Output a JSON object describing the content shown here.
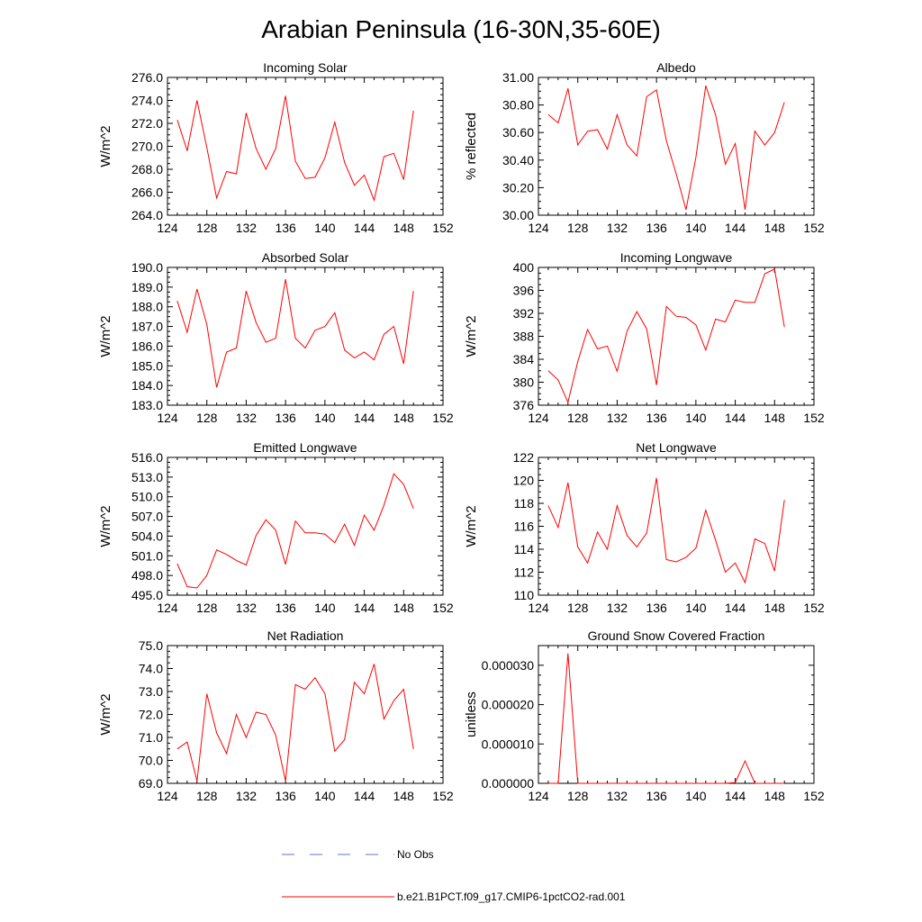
{
  "figure": {
    "title": "Arabian Peninsula (16-30N,35-60E)",
    "line_color": "#ff0000",
    "obs_color": "#6b6bd6",
    "legend": [
      {
        "label": "No Obs",
        "style": "dashed",
        "color": "#6b6bd6"
      },
      {
        "label": "b.e21.B1PCT.f09_g17.CMIP6-1pctCO2-rad.001",
        "style": "solid",
        "color": "#ff0000"
      }
    ]
  },
  "chart_data": [
    {
      "type": "line",
      "title": "Incoming Solar",
      "ylabel": "W/m^2",
      "xlim": [
        124,
        152
      ],
      "ylim": [
        264,
        276
      ],
      "xticks": [
        "124",
        "128",
        "132",
        "136",
        "140",
        "144",
        "148",
        "152"
      ],
      "yticks": [
        "264.0",
        "266.0",
        "268.0",
        "270.0",
        "272.0",
        "274.0",
        "276.0"
      ],
      "x": [
        125,
        126,
        127,
        128,
        129,
        130,
        131,
        132,
        133,
        134,
        135,
        136,
        137,
        138,
        139,
        140,
        141,
        142,
        143,
        144,
        145,
        146,
        147,
        148,
        149
      ],
      "series": [
        {
          "values": [
            272.3,
            269.6,
            274.0,
            269.9,
            265.5,
            267.8,
            267.6,
            272.9,
            269.8,
            268.0,
            269.8,
            274.4,
            268.7,
            267.2,
            267.3,
            269.0,
            272.1,
            268.6,
            266.6,
            267.5,
            265.3,
            269.1,
            269.4,
            267.1,
            273.1
          ]
        }
      ]
    },
    {
      "type": "line",
      "title": "Albedo",
      "ylabel": "% reflected",
      "xlim": [
        124,
        152
      ],
      "ylim": [
        30.0,
        31.0
      ],
      "xticks": [
        "124",
        "128",
        "132",
        "136",
        "140",
        "144",
        "148",
        "152"
      ],
      "yticks": [
        "30.00",
        "30.20",
        "30.40",
        "30.60",
        "30.80",
        "31.00"
      ],
      "x": [
        125,
        126,
        127,
        128,
        129,
        130,
        131,
        132,
        133,
        134,
        135,
        136,
        137,
        138,
        139,
        140,
        141,
        142,
        143,
        144,
        145,
        146,
        147,
        148,
        149
      ],
      "series": [
        {
          "values": [
            30.73,
            30.67,
            30.92,
            30.51,
            30.61,
            30.62,
            30.48,
            30.73,
            30.51,
            30.43,
            30.86,
            30.91,
            30.54,
            30.3,
            30.04,
            30.42,
            30.94,
            30.73,
            30.37,
            30.52,
            30.04,
            30.61,
            30.51,
            30.6,
            30.82
          ]
        }
      ]
    },
    {
      "type": "line",
      "title": "Absorbed Solar",
      "ylabel": "W/m^2",
      "xlim": [
        124,
        152
      ],
      "ylim": [
        183,
        190
      ],
      "xticks": [
        "124",
        "128",
        "132",
        "136",
        "140",
        "144",
        "148",
        "152"
      ],
      "yticks": [
        "183.0",
        "184.0",
        "185.0",
        "186.0",
        "187.0",
        "188.0",
        "189.0",
        "190.0"
      ],
      "x": [
        125,
        126,
        127,
        128,
        129,
        130,
        131,
        132,
        133,
        134,
        135,
        136,
        137,
        138,
        139,
        140,
        141,
        142,
        143,
        144,
        145,
        146,
        147,
        148,
        149
      ],
      "series": [
        {
          "values": [
            188.3,
            186.7,
            188.9,
            187.1,
            183.9,
            185.7,
            185.9,
            188.8,
            187.2,
            186.2,
            186.4,
            189.4,
            186.4,
            185.9,
            186.8,
            187.0,
            187.7,
            185.8,
            185.4,
            185.7,
            185.3,
            186.6,
            187.0,
            185.1,
            188.8
          ]
        }
      ]
    },
    {
      "type": "line",
      "title": "Incoming Longwave",
      "ylabel": "W/m^2",
      "xlim": [
        124,
        152
      ],
      "ylim": [
        376,
        400
      ],
      "xticks": [
        "124",
        "128",
        "132",
        "136",
        "140",
        "144",
        "148",
        "152"
      ],
      "yticks": [
        "376",
        "380",
        "384",
        "388",
        "392",
        "396",
        "400"
      ],
      "x": [
        125,
        126,
        127,
        128,
        129,
        130,
        131,
        132,
        133,
        134,
        135,
        136,
        137,
        138,
        139,
        140,
        141,
        142,
        143,
        144,
        145,
        146,
        147,
        148,
        149
      ],
      "series": [
        {
          "values": [
            382.0,
            380.4,
            376.5,
            383.6,
            389.2,
            385.8,
            386.3,
            381.9,
            388.9,
            392.3,
            389.3,
            379.5,
            393.2,
            391.5,
            391.3,
            390.0,
            385.6,
            391.0,
            390.5,
            394.3,
            393.9,
            393.9,
            398.9,
            399.7,
            389.6
          ]
        }
      ]
    },
    {
      "type": "line",
      "title": "Emitted Longwave",
      "ylabel": "W/m^2",
      "xlim": [
        124,
        152
      ],
      "ylim": [
        495,
        516
      ],
      "xticks": [
        "124",
        "128",
        "132",
        "136",
        "140",
        "144",
        "148",
        "152"
      ],
      "yticks": [
        "495.0",
        "498.0",
        "501.0",
        "504.0",
        "507.0",
        "510.0",
        "513.0",
        "516.0"
      ],
      "x": [
        125,
        126,
        127,
        128,
        129,
        130,
        131,
        132,
        133,
        134,
        135,
        136,
        137,
        138,
        139,
        140,
        141,
        142,
        143,
        144,
        145,
        146,
        147,
        148,
        149
      ],
      "series": [
        {
          "values": [
            499.8,
            496.3,
            496.1,
            498.0,
            501.9,
            501.2,
            500.3,
            499.6,
            504.1,
            506.5,
            504.9,
            499.7,
            506.3,
            504.5,
            504.5,
            504.3,
            503.0,
            505.8,
            502.6,
            507.2,
            504.9,
            508.7,
            513.5,
            511.9,
            508.2
          ]
        }
      ]
    },
    {
      "type": "line",
      "title": "Net Longwave",
      "ylabel": "W/m^2",
      "xlim": [
        124,
        152
      ],
      "ylim": [
        110,
        122
      ],
      "xticks": [
        "124",
        "128",
        "132",
        "136",
        "140",
        "144",
        "148",
        "152"
      ],
      "yticks": [
        "110",
        "112",
        "114",
        "116",
        "118",
        "120",
        "122"
      ],
      "x": [
        125,
        126,
        127,
        128,
        129,
        130,
        131,
        132,
        133,
        134,
        135,
        136,
        137,
        138,
        139,
        140,
        141,
        142,
        143,
        144,
        145,
        146,
        147,
        148,
        149
      ],
      "series": [
        {
          "values": [
            117.8,
            115.9,
            119.8,
            114.2,
            112.8,
            115.5,
            114.0,
            117.8,
            115.2,
            114.2,
            115.4,
            120.2,
            113.1,
            112.9,
            113.3,
            114.1,
            117.4,
            114.8,
            112.0,
            112.8,
            111.1,
            114.9,
            114.5,
            112.1,
            118.3
          ]
        }
      ]
    },
    {
      "type": "line",
      "title": "Net Radiation",
      "ylabel": "W/m^2",
      "xlim": [
        124,
        152
      ],
      "ylim": [
        69,
        75
      ],
      "xticks": [
        "124",
        "128",
        "132",
        "136",
        "140",
        "144",
        "148",
        "152"
      ],
      "yticks": [
        "69.0",
        "70.0",
        "71.0",
        "72.0",
        "73.0",
        "74.0",
        "75.0"
      ],
      "x": [
        125,
        126,
        127,
        128,
        129,
        130,
        131,
        132,
        133,
        134,
        135,
        136,
        137,
        138,
        139,
        140,
        141,
        142,
        143,
        144,
        145,
        146,
        147,
        148,
        149
      ],
      "series": [
        {
          "values": [
            70.5,
            70.8,
            69.1,
            72.9,
            71.2,
            70.3,
            72.0,
            71.0,
            72.1,
            72.0,
            71.1,
            69.1,
            73.3,
            73.1,
            73.6,
            72.9,
            70.4,
            70.9,
            73.4,
            72.9,
            74.2,
            71.8,
            72.6,
            73.1,
            70.5
          ]
        }
      ]
    },
    {
      "type": "line",
      "title": "Ground Snow Covered Fraction",
      "ylabel": "unitless",
      "xlim": [
        124,
        152
      ],
      "ylim": [
        0,
        3.5e-05
      ],
      "xticks": [
        "124",
        "128",
        "132",
        "136",
        "140",
        "144",
        "148",
        "152"
      ],
      "yticks": [
        "0.000000",
        "0.000010",
        "0.000020",
        "0.000030"
      ],
      "yticks_values": [
        0,
        1e-05,
        2e-05,
        3e-05
      ],
      "x": [
        125,
        126,
        127,
        128,
        129,
        130,
        131,
        132,
        133,
        134,
        135,
        136,
        137,
        138,
        139,
        140,
        141,
        142,
        143,
        144,
        145,
        146,
        147,
        148,
        149
      ],
      "series": [
        {
          "values": [
            0,
            0,
            3.3e-05,
            0,
            0,
            0,
            0,
            0,
            0,
            0,
            0,
            0,
            0,
            0,
            0,
            0,
            0,
            0,
            0,
            2e-07,
            5.7e-06,
            0,
            0,
            0,
            0
          ]
        }
      ]
    }
  ]
}
